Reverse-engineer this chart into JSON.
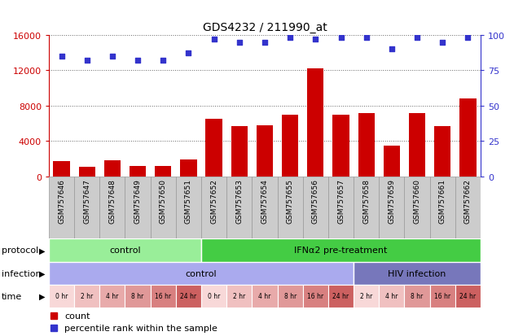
{
  "title": "GDS4232 / 211990_at",
  "samples": [
    "GSM757646",
    "GSM757647",
    "GSM757648",
    "GSM757649",
    "GSM757650",
    "GSM757651",
    "GSM757652",
    "GSM757653",
    "GSM757654",
    "GSM757655",
    "GSM757656",
    "GSM757657",
    "GSM757658",
    "GSM757659",
    "GSM757660",
    "GSM757661",
    "GSM757662"
  ],
  "counts": [
    1700,
    1100,
    1800,
    1200,
    1200,
    1900,
    6500,
    5700,
    5800,
    7000,
    12200,
    7000,
    7200,
    3500,
    7200,
    5700,
    8800
  ],
  "percentile_ranks": [
    85,
    82,
    85,
    82,
    82,
    87,
    97,
    95,
    95,
    98,
    97,
    98,
    98,
    90,
    98,
    95,
    98
  ],
  "ylim_left": [
    0,
    16000
  ],
  "ylim_right": [
    0,
    100
  ],
  "yticks_left": [
    0,
    4000,
    8000,
    12000,
    16000
  ],
  "yticks_right": [
    0,
    25,
    50,
    75,
    100
  ],
  "bar_color": "#cc0000",
  "dot_color": "#3333cc",
  "protocol_groups": [
    {
      "label": "control",
      "start": 0,
      "end": 6,
      "color": "#99ee99"
    },
    {
      "label": "IFNα2 pre-treatment",
      "start": 6,
      "end": 17,
      "color": "#44cc44"
    }
  ],
  "infection_groups": [
    {
      "label": "control",
      "start": 0,
      "end": 12,
      "color": "#aaaaee"
    },
    {
      "label": "HIV infection",
      "start": 12,
      "end": 17,
      "color": "#7777bb"
    }
  ],
  "time_labels": [
    "0 hr",
    "2 hr",
    "4 hr",
    "8 hr",
    "16 hr",
    "24 hr",
    "0 hr",
    "2 hr",
    "4 hr",
    "8 hr",
    "16 hr",
    "24 hr",
    "2 hr",
    "4 hr",
    "8 hr",
    "16 hr",
    "24 hr"
  ],
  "time_colors": [
    "#f8d8d8",
    "#f0c0c0",
    "#e8aaaa",
    "#e09898",
    "#d88080",
    "#cc6060",
    "#f8d8d8",
    "#f0c0c0",
    "#e8aaaa",
    "#e09898",
    "#d88080",
    "#cc6060",
    "#f8d8d8",
    "#f0c0c0",
    "#e09898",
    "#d88080",
    "#cc6060"
  ],
  "legend_count_color": "#cc0000",
  "legend_dot_color": "#3333cc",
  "axis_color_left": "#cc0000",
  "axis_color_right": "#3333cc",
  "grid_color": "#666666",
  "sample_box_color": "#cccccc",
  "sample_box_edge": "#999999"
}
